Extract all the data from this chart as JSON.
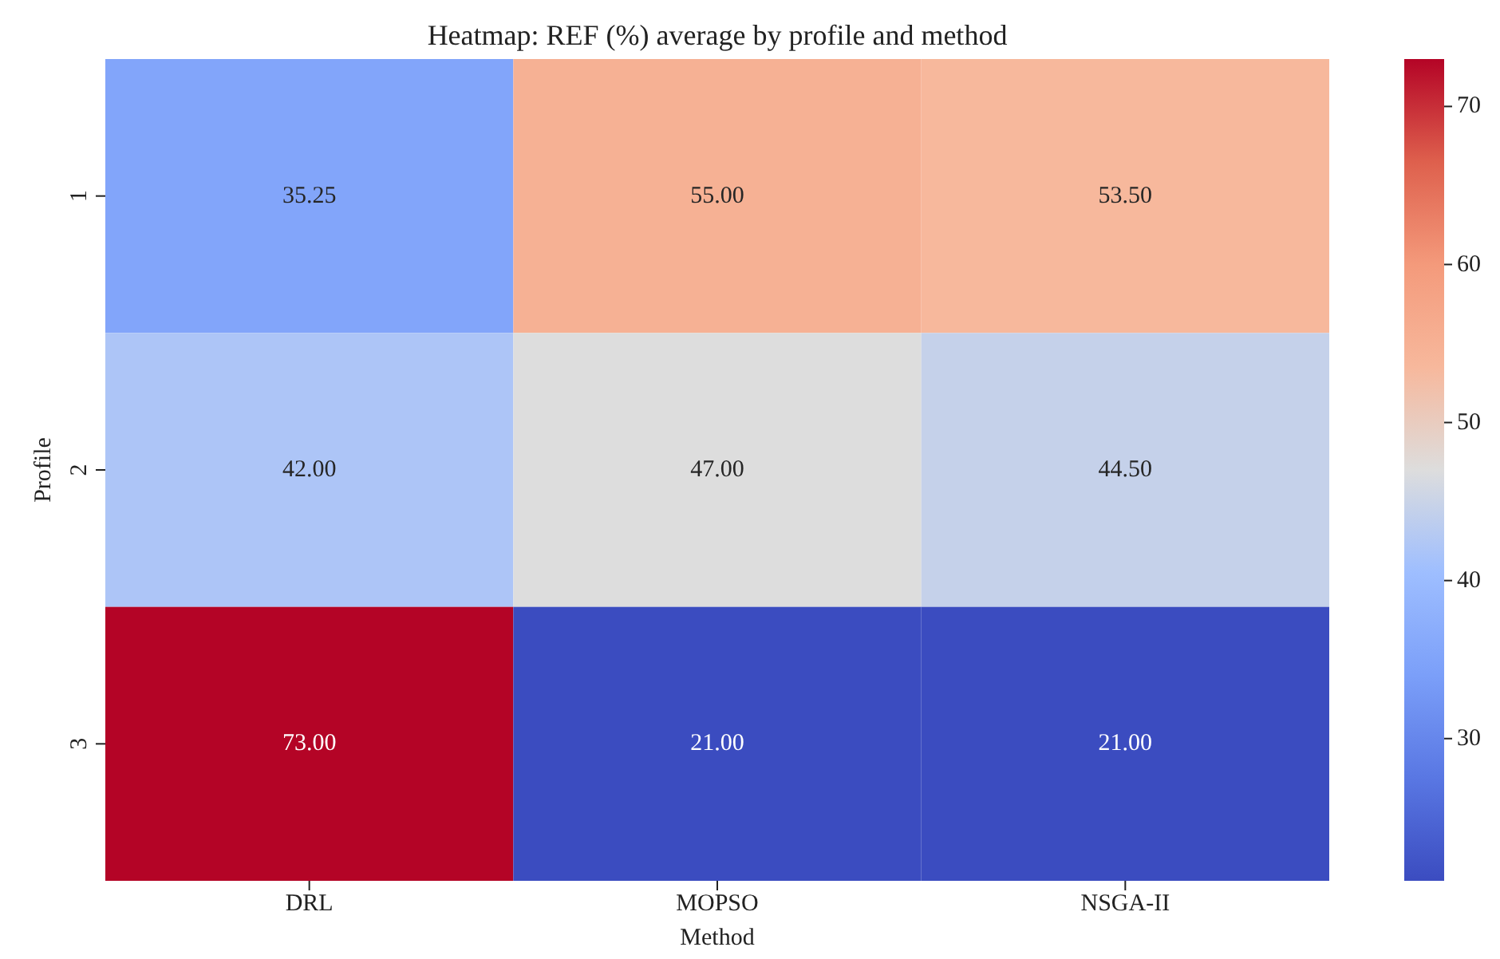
{
  "chart_data": {
    "type": "heatmap",
    "title": "Heatmap: REF (%) average by profile and method",
    "xlabel": "Method",
    "ylabel": "Profile",
    "categories": [
      "DRL",
      "MOPSO",
      "NSGA-II"
    ],
    "y_categories": [
      "1",
      "2",
      "3"
    ],
    "cells": [
      [
        35.25,
        55,
        53.5
      ],
      [
        42,
        47,
        44.5
      ],
      [
        73,
        21,
        21
      ]
    ],
    "cell_labels": [
      [
        "35.25",
        "55.00",
        "53.50"
      ],
      [
        "42.00",
        "47.00",
        "44.50"
      ],
      [
        "73.00",
        "21.00",
        "21.00"
      ]
    ],
    "clim": [
      21,
      73
    ],
    "cticks": [
      30,
      40,
      50,
      60,
      70
    ]
  }
}
